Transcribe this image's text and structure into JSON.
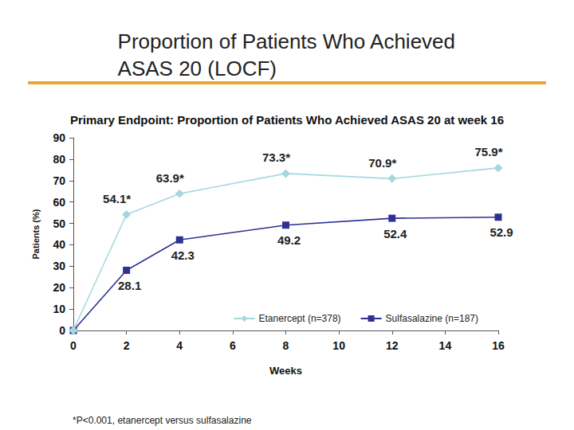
{
  "chart_data": {
    "type": "line",
    "title": "Proportion of Patients Who Achieved\nASAS 20 (LOCF)",
    "subtitle": "Primary Endpoint: Proportion of Patients Who Achieved ASAS 20 at week 16",
    "x_label": "Weeks",
    "y_label": "Patients (%)",
    "footnote": "*P<0.001, etanercept versus sulfasalazine",
    "x": [
      0,
      2,
      4,
      8,
      12,
      16
    ],
    "series": [
      {
        "name": "Etanercept (n=378)",
        "color": "#a5d8dd",
        "marker": "diamond",
        "values": [
          0,
          54.1,
          63.9,
          73.3,
          70.9,
          75.9
        ],
        "value_labels": [
          null,
          "54.1*",
          "63.9*",
          "73.3*",
          "70.9*",
          "75.9*"
        ]
      },
      {
        "name": "Sulfasalazine (n=187)",
        "color": "#2e3192",
        "marker": "square",
        "values": [
          0,
          28.1,
          42.3,
          49.2,
          52.4,
          52.9
        ],
        "value_labels": [
          null,
          "28.1",
          "42.3",
          "49.2",
          "52.4",
          "52.9"
        ]
      }
    ],
    "xlim": [
      0,
      16
    ],
    "xticks": [
      0,
      2,
      4,
      6,
      8,
      10,
      12,
      14,
      16
    ],
    "ylim": [
      0,
      90
    ],
    "yticks": [
      0,
      10,
      20,
      30,
      40,
      50,
      60,
      70,
      80,
      90
    ],
    "grid": false,
    "legend": "lower right",
    "data_labels": true
  }
}
